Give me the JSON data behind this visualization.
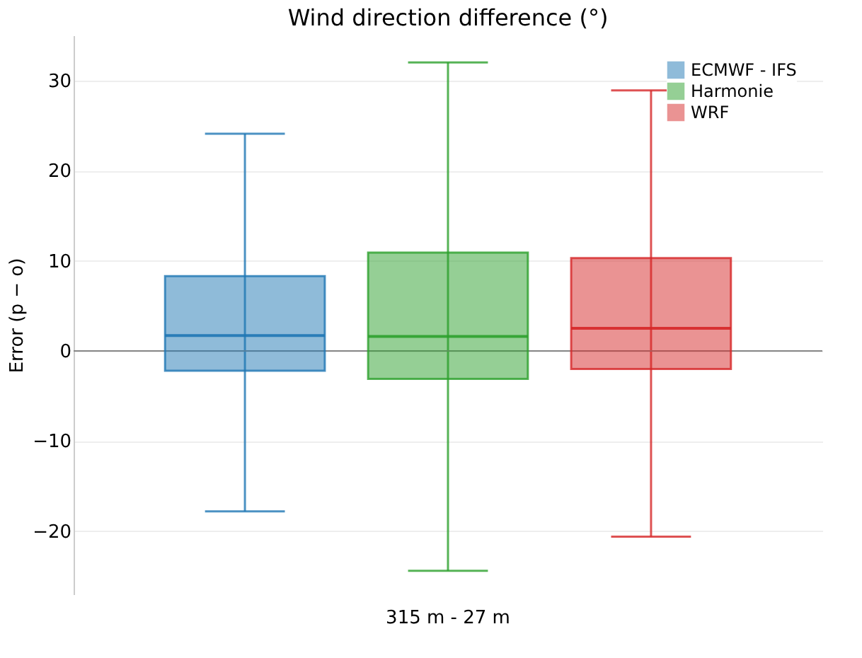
{
  "chart_data": {
    "type": "box",
    "title": "Wind direction difference (°)",
    "ylabel": "Error (p − o)",
    "categories": [
      "315 m - 27 m"
    ],
    "series": [
      {
        "name": "ECMWF - IFS",
        "color": "#1f77b4",
        "boxes": [
          {
            "low": -17.8,
            "q1": -2.2,
            "median": 1.7,
            "q3": 8.3,
            "high": 24.1
          }
        ]
      },
      {
        "name": "Harmonie",
        "color": "#2ca02c",
        "boxes": [
          {
            "low": -24.4,
            "q1": -3.1,
            "median": 1.6,
            "q3": 10.9,
            "high": 32.0
          }
        ]
      },
      {
        "name": "WRF",
        "color": "#d62728",
        "boxes": [
          {
            "low": -20.6,
            "q1": -2.0,
            "median": 2.5,
            "q3": 10.3,
            "high": 28.9
          }
        ]
      }
    ],
    "ylim": [
      -27,
      35
    ],
    "yticks": [
      -20,
      -10,
      0,
      10,
      20,
      30
    ],
    "ref_lines": [
      {
        "axis": "y",
        "value": 0,
        "color": "#888888"
      }
    ],
    "grid": "y",
    "legend": "top right"
  }
}
